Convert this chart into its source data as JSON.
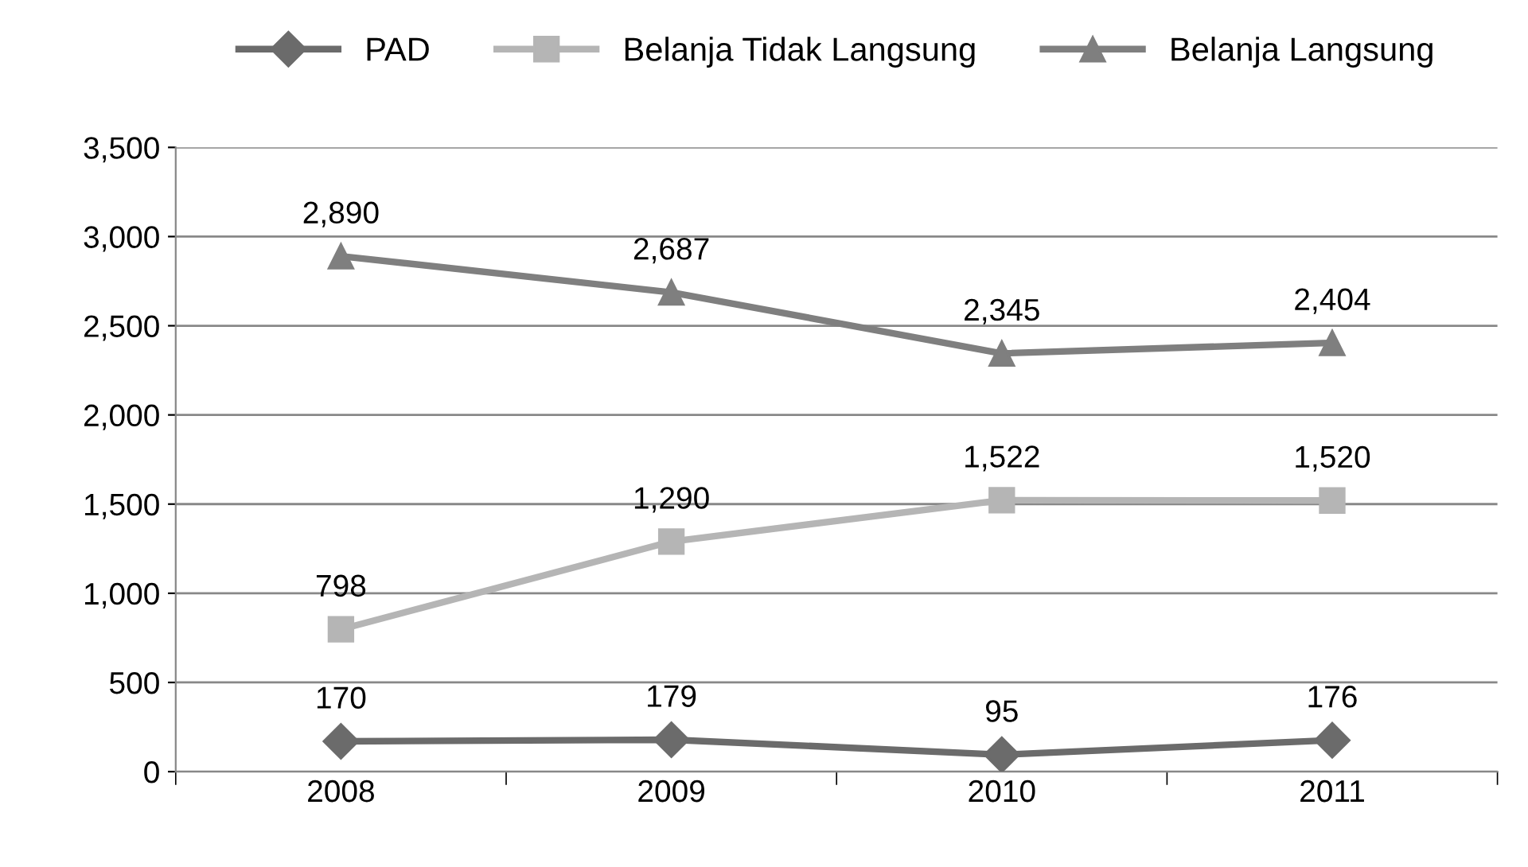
{
  "chart_data": {
    "type": "line",
    "categories": [
      "2008",
      "2009",
      "2010",
      "2011"
    ],
    "series": [
      {
        "name": "PAD",
        "color": "#6b6b6b",
        "marker": "diamond",
        "values": [
          170,
          179,
          95,
          176
        ],
        "value_labels": [
          "170",
          "179",
          "95",
          "176"
        ]
      },
      {
        "name": "Belanja Tidak Langsung",
        "color": "#b5b5b5",
        "marker": "square",
        "values": [
          798,
          1290,
          1522,
          1520
        ],
        "value_labels": [
          "798",
          "1,290",
          "1,522",
          "1,520"
        ]
      },
      {
        "name": "Belanja Langsung",
        "color": "#7f7f7f",
        "marker": "triangle",
        "values": [
          2890,
          2687,
          2345,
          2404
        ],
        "value_labels": [
          "2,890",
          "2,687",
          "2,345",
          "2,404"
        ]
      }
    ],
    "ylim": [
      0,
      3500
    ],
    "yticks": [
      0,
      500,
      {
        "value": 1000,
        "label": "1,000"
      },
      {
        "value": 1500,
        "label": "1,500"
      },
      {
        "value": 2000,
        "label": "2,000"
      },
      {
        "value": 2500,
        "label": "2,500"
      },
      {
        "value": 3000,
        "label": "3,000"
      },
      {
        "value": 3500,
        "label": "3,500"
      }
    ],
    "grid": "y",
    "legend": "top",
    "line_style": "solid"
  }
}
